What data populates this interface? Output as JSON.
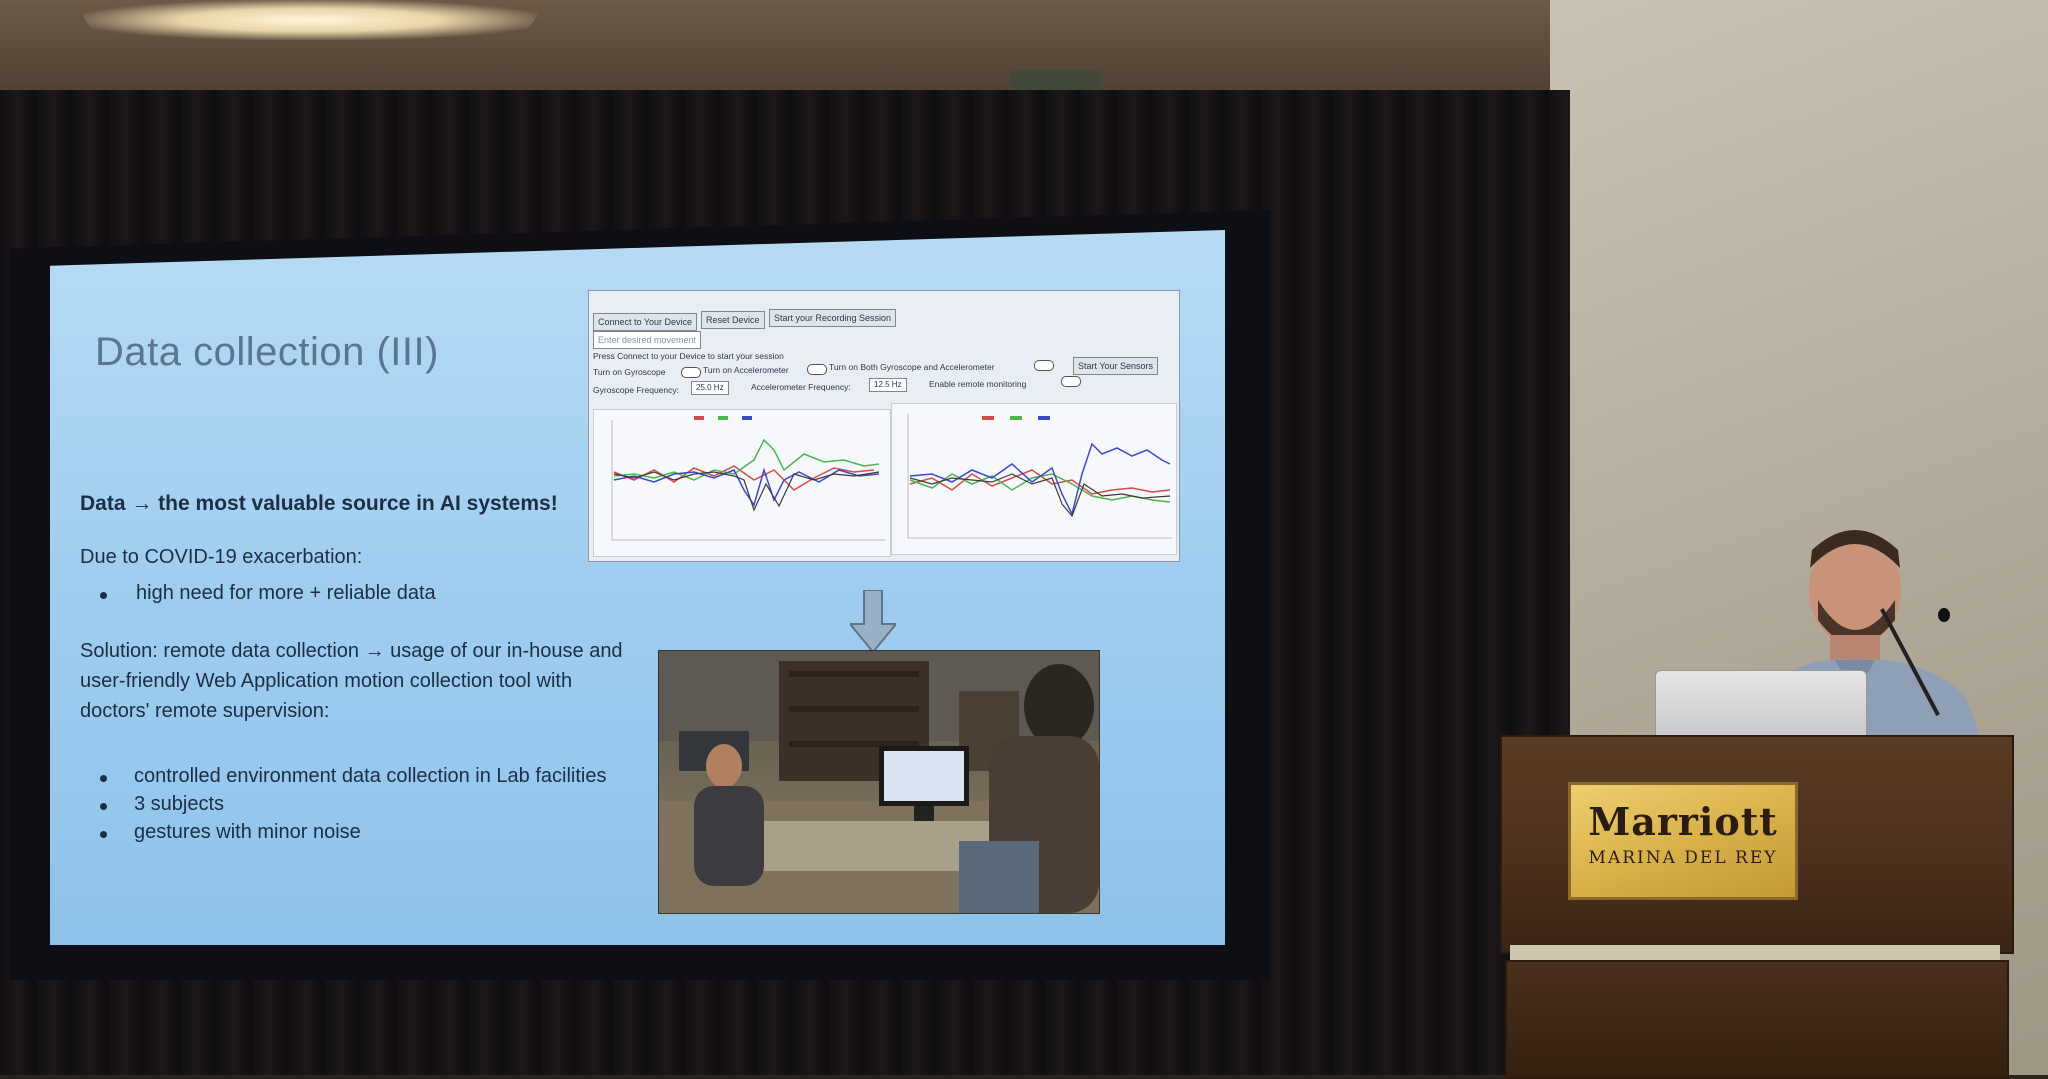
{
  "slide": {
    "title": "Data collection (III)",
    "headline": "Data → the most valuable source in AI systems!",
    "covid_line": "Due to COVID-19 exacerbation:",
    "bullet_need": "high need for more + reliable data",
    "solution_line1": "Solution: remote data collection → usage of our in-house and",
    "solution_line2": "user-friendly Web Application motion collection tool with",
    "solution_line3": "doctors' remote supervision:",
    "bullets": [
      "controlled environment data collection in Lab facilities",
      "3 subjects",
      "gestures with minor noise"
    ]
  },
  "app": {
    "btn_connect": "Connect to Your Device",
    "btn_reset": "Reset Device",
    "btn_start_session": "Start your Recording Session",
    "input_placeholder": "Enter desired movement",
    "status": "Press Connect to your Device to start your session",
    "toggle_gyro": "Turn on Gyroscope",
    "toggle_accel": "Turn on Accelerometer",
    "toggle_both": "Turn on Both Gyroscope and Accelerometer",
    "btn_start_sensors": "Start Your Sensors",
    "gyro_freq_label": "Gyroscope Frequency:",
    "gyro_freq_value": "25.0 Hz",
    "accel_freq_label": "Accelerometer Frequency:",
    "accel_freq_value": "12.5 Hz",
    "remote_label": "Enable remote monitoring",
    "colors": {
      "x": "#d94a4a",
      "y": "#4ab84a",
      "z": "#3a4ad0",
      "dark": "#3a3a3a"
    }
  },
  "venue": {
    "brand": "Marriott",
    "location": "MARINA DEL REY"
  }
}
